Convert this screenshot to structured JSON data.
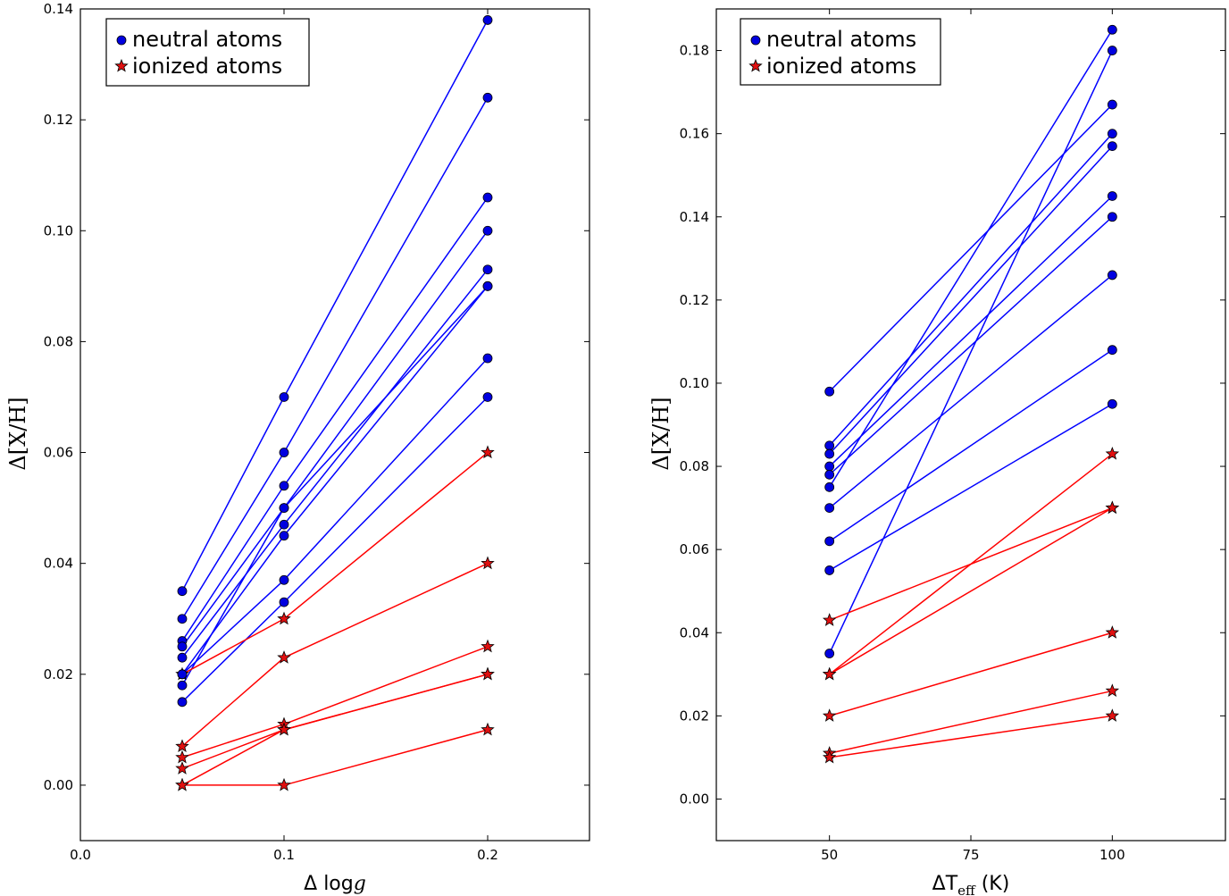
{
  "chart_data": [
    {
      "type": "line",
      "xlabel_prefix": "Δ log",
      "xlabel_var": "g",
      "ylabel": "Δ[X/H]",
      "xlim": [
        0.0,
        0.25
      ],
      "ylim": [
        -0.01,
        0.14
      ],
      "xticks": [
        0.0,
        0.1,
        0.2
      ],
      "xtick_labels": [
        "0.0",
        "0.1",
        "0.2"
      ],
      "yticks": [
        0.0,
        0.02,
        0.04,
        0.06,
        0.08,
        0.1,
        0.12,
        0.14
      ],
      "ytick_labels": [
        "0.00",
        "0.02",
        "0.04",
        "0.06",
        "0.08",
        "0.10",
        "0.12",
        "0.14"
      ],
      "legend": [
        "neutral atoms",
        "ionized atoms"
      ],
      "legend_position": "upper-left",
      "neutral_series": [
        {
          "x": [
            0.05,
            0.1,
            0.2
          ],
          "y": [
            0.035,
            0.07,
            0.138
          ]
        },
        {
          "x": [
            0.05,
            0.1,
            0.2
          ],
          "y": [
            0.03,
            0.06,
            0.124
          ]
        },
        {
          "x": [
            0.05,
            0.1,
            0.2
          ],
          "y": [
            0.026,
            0.054,
            0.106
          ]
        },
        {
          "x": [
            0.05,
            0.1,
            0.2
          ],
          "y": [
            0.025,
            0.05,
            0.1
          ]
        },
        {
          "x": [
            0.05,
            0.1,
            0.2
          ],
          "y": [
            0.023,
            0.047,
            0.093
          ]
        },
        {
          "x": [
            0.05,
            0.1,
            0.2
          ],
          "y": [
            0.02,
            0.045,
            0.09
          ]
        },
        {
          "x": [
            0.05,
            0.1,
            0.2
          ],
          "y": [
            0.018,
            0.05,
            0.09
          ]
        },
        {
          "x": [
            0.05,
            0.1,
            0.2
          ],
          "y": [
            0.02,
            0.037,
            0.077
          ]
        },
        {
          "x": [
            0.05,
            0.1,
            0.2
          ],
          "y": [
            0.015,
            0.033,
            0.07
          ]
        }
      ],
      "ionized_series": [
        {
          "x": [
            0.05,
            0.1,
            0.2
          ],
          "y": [
            0.02,
            0.03,
            0.06
          ]
        },
        {
          "x": [
            0.05,
            0.1,
            0.2
          ],
          "y": [
            0.007,
            0.023,
            0.04
          ]
        },
        {
          "x": [
            0.05,
            0.1,
            0.2
          ],
          "y": [
            0.005,
            0.011,
            0.025
          ]
        },
        {
          "x": [
            0.05,
            0.1,
            0.2
          ],
          "y": [
            0.003,
            0.01,
            0.02
          ]
        },
        {
          "x": [
            0.05,
            0.1,
            0.2
          ],
          "y": [
            0.0,
            0.01,
            0.02
          ]
        },
        {
          "x": [
            0.05,
            0.1,
            0.2
          ],
          "y": [
            0.0,
            0.0,
            0.01
          ]
        }
      ]
    },
    {
      "type": "line",
      "xlabel_prefix": "ΔT",
      "xlabel_sub": "eff",
      "xlabel_suffix": " (K)",
      "ylabel": "Δ[X/H]",
      "xlim": [
        30,
        120
      ],
      "ylim": [
        -0.01,
        0.19
      ],
      "xticks": [
        50,
        75,
        100
      ],
      "xtick_labels": [
        "50",
        "75",
        "100"
      ],
      "yticks": [
        0.0,
        0.02,
        0.04,
        0.06,
        0.08,
        0.1,
        0.12,
        0.14,
        0.16,
        0.18
      ],
      "ytick_labels": [
        "0.00",
        "0.02",
        "0.04",
        "0.06",
        "0.08",
        "0.10",
        "0.12",
        "0.14",
        "0.16",
        "0.18"
      ],
      "legend": [
        "neutral atoms",
        "ionized atoms"
      ],
      "legend_position": "upper-left",
      "neutral_series": [
        {
          "x": [
            50,
            100
          ],
          "y": [
            0.098,
            0.167
          ]
        },
        {
          "x": [
            50,
            100
          ],
          "y": [
            0.085,
            0.16
          ]
        },
        {
          "x": [
            50,
            100
          ],
          "y": [
            0.083,
            0.157
          ]
        },
        {
          "x": [
            50,
            100
          ],
          "y": [
            0.08,
            0.145
          ]
        },
        {
          "x": [
            50,
            100
          ],
          "y": [
            0.078,
            0.14
          ]
        },
        {
          "x": [
            50,
            100
          ],
          "y": [
            0.075,
            0.185
          ]
        },
        {
          "x": [
            50,
            100
          ],
          "y": [
            0.07,
            0.126
          ]
        },
        {
          "x": [
            50,
            100
          ],
          "y": [
            0.062,
            0.108
          ]
        },
        {
          "x": [
            50,
            100
          ],
          "y": [
            0.055,
            0.095
          ]
        },
        {
          "x": [
            50,
            100
          ],
          "y": [
            0.035,
            0.18
          ]
        }
      ],
      "ionized_series": [
        {
          "x": [
            50,
            100
          ],
          "y": [
            0.043,
            0.07
          ]
        },
        {
          "x": [
            50,
            100
          ],
          "y": [
            0.03,
            0.083
          ]
        },
        {
          "x": [
            50,
            100
          ],
          "y": [
            0.03,
            0.07
          ]
        },
        {
          "x": [
            50,
            100
          ],
          "y": [
            0.02,
            0.04
          ]
        },
        {
          "x": [
            50,
            100
          ],
          "y": [
            0.011,
            0.026
          ]
        },
        {
          "x": [
            50,
            100
          ],
          "y": [
            0.01,
            0.02
          ]
        }
      ]
    }
  ],
  "colors": {
    "neutral": "#0000ff",
    "ionized": "#ff0000",
    "neutral_marker": "#0000e0",
    "ionized_marker": "#e01010"
  }
}
